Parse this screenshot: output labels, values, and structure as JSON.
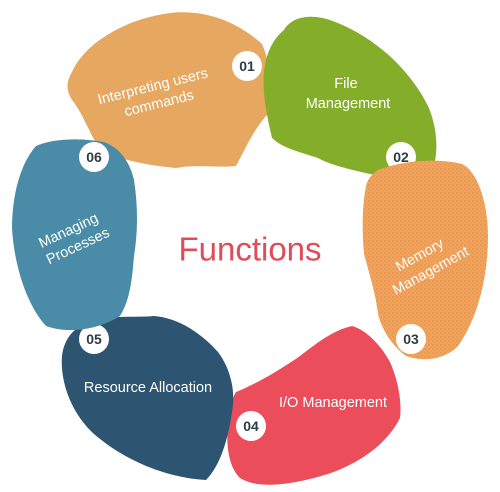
{
  "center_title": "Functions",
  "colors": {
    "title": "#e14b59",
    "badge_fill": "#ffffff",
    "badge_text": "#2f3b45"
  },
  "segments": [
    {
      "number": "01",
      "label_lines": [
        "Interpreting users",
        "commands"
      ],
      "color": "#e6a760"
    },
    {
      "number": "02",
      "label_lines": [
        "File",
        "Management"
      ],
      "color": "#84ad29"
    },
    {
      "number": "03",
      "label_lines": [
        "Memory",
        "Management"
      ],
      "color": "#f2a35c"
    },
    {
      "number": "04",
      "label_lines": [
        "I/O Management"
      ],
      "color": "#ec4d5b"
    },
    {
      "number": "05",
      "label_lines": [
        "Resource Allocation"
      ],
      "color": "#2d5470"
    },
    {
      "number": "06",
      "label_lines": [
        "Managing",
        "Processes"
      ],
      "color": "#4a8ca8"
    }
  ]
}
